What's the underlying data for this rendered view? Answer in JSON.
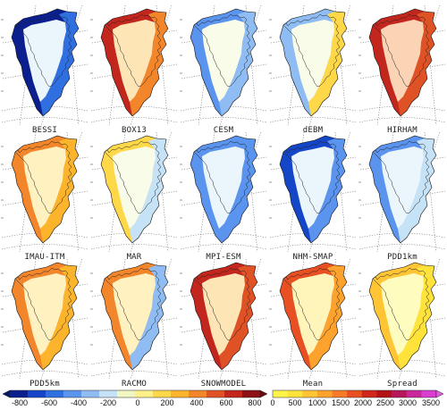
{
  "panels": [
    {
      "name": "BESSI",
      "scheme": "diff",
      "west_value": -700,
      "interior_value": -150,
      "east_value": -500
    },
    {
      "name": "BOX13",
      "scheme": "diff",
      "west_value": 600,
      "interior_value": 250,
      "east_value": 450
    },
    {
      "name": "CESM",
      "scheme": "diff",
      "west_value": -350,
      "interior_value": -100,
      "east_value": -250
    },
    {
      "name": "dEBM",
      "scheme": "diff",
      "west_value": -250,
      "interior_value": -80,
      "east_value": 150
    },
    {
      "name": "HIRHAM",
      "scheme": "diff",
      "west_value": 650,
      "interior_value": 350,
      "east_value": 550
    },
    {
      "name": "IMAU-ITM",
      "scheme": "diff",
      "west_value": 350,
      "interior_value": 150,
      "east_value": 300
    },
    {
      "name": "MAR",
      "scheme": "diff",
      "west_value": 200,
      "interior_value": -80,
      "east_value": -150
    },
    {
      "name": "MPI-ESM",
      "scheme": "diff",
      "west_value": -450,
      "interior_value": -150,
      "east_value": -350
    },
    {
      "name": "NHM-SMAP",
      "scheme": "diff",
      "west_value": -600,
      "interior_value": -200,
      "east_value": -450
    },
    {
      "name": "PDD1km",
      "scheme": "diff",
      "west_value": -400,
      "interior_value": -120,
      "east_value": -200
    },
    {
      "name": "PDD5km",
      "scheme": "diff",
      "west_value": 350,
      "interior_value": 150,
      "east_value": 250
    },
    {
      "name": "RACMO",
      "scheme": "diff",
      "west_value": 450,
      "interior_value": 150,
      "east_value": -250
    },
    {
      "name": "SNOWMODEL",
      "scheme": "diff",
      "west_value": 600,
      "interior_value": 300,
      "east_value": 500
    },
    {
      "name": "Mean",
      "scheme": "mag",
      "west_value": 1900,
      "interior_value": 500,
      "east_value": 1200
    },
    {
      "name": "Spread",
      "scheme": "mag",
      "west_value": 700,
      "interior_value": 250,
      "east_value": 450
    }
  ],
  "colorbars": {
    "difference": {
      "ticks": [
        "-800",
        "-600",
        "-400",
        "-200",
        "0",
        "200",
        "400",
        "600",
        "800"
      ],
      "range": [
        -800,
        800
      ],
      "colors": [
        "#0b1f8f",
        "#1646c8",
        "#2f6fe0",
        "#5a94ee",
        "#8fbcf2",
        "#c6e2f6",
        "#f1f7c2",
        "#fff08a",
        "#ffd84a",
        "#fbb42c",
        "#f3852a",
        "#df5226",
        "#c2261d",
        "#8e0f16"
      ],
      "under_color": "#06166e",
      "over_color": "#6e0a10"
    },
    "magnitude": {
      "ticks": [
        "0",
        "500",
        "1000",
        "1500",
        "2000",
        "2500",
        "3000",
        "3500"
      ],
      "range": [
        0,
        3500
      ],
      "colors": [
        "#fff54a",
        "#ffe23a",
        "#ffc534",
        "#fda22d",
        "#f67a27",
        "#e84f22",
        "#d0261c",
        "#b31318",
        "#b7185a",
        "#c9279a",
        "#d93ed0"
      ],
      "over_color": "#e35be0"
    }
  }
}
